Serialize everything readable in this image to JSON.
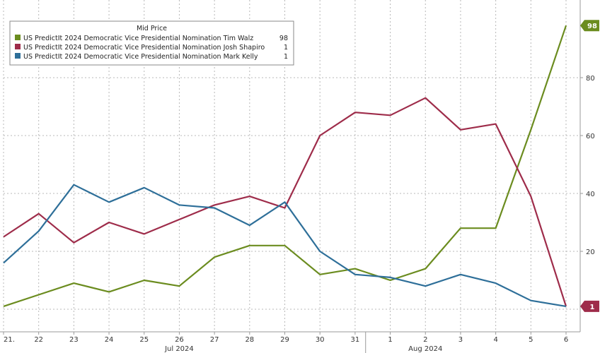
{
  "chart_data": {
    "type": "line",
    "title": "",
    "xlabel": "",
    "ylabel": "",
    "legend_title": "Mid Price",
    "legend_position": "top-left",
    "grid": true,
    "ylim": [
      0,
      105
    ],
    "y_axis_side": "right",
    "y_ticks": [
      20,
      40,
      60,
      80
    ],
    "x": [
      "21",
      "22",
      "23",
      "24",
      "25",
      "26",
      "27",
      "28",
      "29",
      "30",
      "31",
      "1",
      "2",
      "3",
      "4",
      "5",
      "6"
    ],
    "x_display_labels": [
      "21.",
      "22",
      "23",
      "24",
      "25",
      "26",
      "27",
      "28",
      "29",
      "30",
      "31",
      "1",
      "2",
      "3",
      "4",
      "5",
      "6"
    ],
    "month_labels": [
      {
        "text": "Jul 2024",
        "at_index": 5
      },
      {
        "text": "Aug 2024",
        "at_index": 12
      }
    ],
    "series": [
      {
        "name": "US PredictIt 2024 Democratic Vice Presidential Nomination Tim Walz",
        "last_value": "98",
        "color": "#6b8c1f",
        "values": [
          1,
          5,
          9,
          6,
          10,
          8,
          18,
          22,
          22,
          12,
          14,
          10,
          14,
          28,
          28,
          62,
          98
        ]
      },
      {
        "name": "US PredictIt 2024 Democratic Vice Presidential Nomination Josh Shapiro",
        "last_value": "1",
        "color": "#9e2c4a",
        "values": [
          25,
          33,
          23,
          30,
          26,
          31,
          36,
          39,
          35,
          60,
          68,
          67,
          73,
          62,
          64,
          39,
          1
        ]
      },
      {
        "name": "US PredictIt 2024 Democratic Vice Presidential Nomination Mark Kelly",
        "last_value": "1",
        "color": "#2e6f99",
        "values": [
          16,
          27,
          43,
          37,
          42,
          36,
          35,
          29,
          37,
          20,
          12,
          11,
          8,
          12,
          9,
          3,
          1
        ]
      }
    ]
  }
}
